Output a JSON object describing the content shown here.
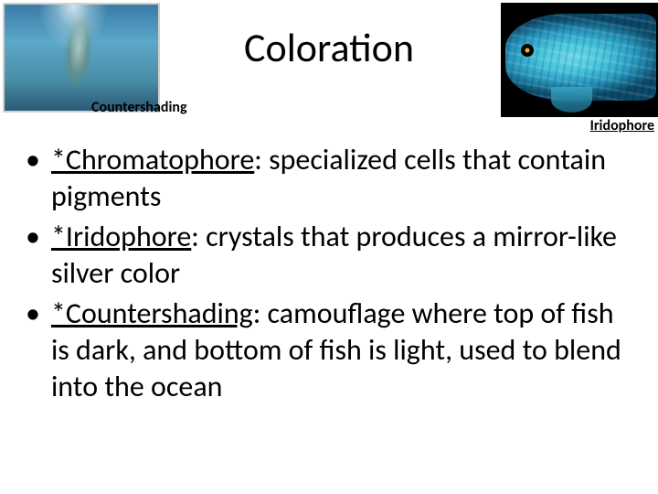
{
  "title": "Coloration",
  "left_image": {
    "label": "Countershading",
    "bg_gradient": "linear-gradient(180deg, #3a7ba8 0%, #5ba8c8 35%, #4a8fa8 70%, #2a5a78 100%)"
  },
  "right_image": {
    "label": "Iridophore",
    "fish_gradient": "radial-gradient(ellipse 70% 50% at 45% 50%, #6ed8e8 0%, #48c8e0 30%, #2898c0 60%, #0a4868 90%)"
  },
  "bullets": [
    {
      "term": "*Chromatophore",
      "rest": ": specialized cells that contain pigments"
    },
    {
      "term": "*Iridophore",
      "rest": ": crystals that produces a mirror-like silver color"
    },
    {
      "term": "*Countershading",
      "rest": ": camouflage where top of fish is dark, and bottom of fish is light, used to blend into the ocean"
    }
  ],
  "colors": {
    "text": "#000000",
    "background": "#ffffff"
  },
  "typography": {
    "title_fontsize": 44,
    "body_fontsize": 32,
    "label_fontsize": 16,
    "font_family": "Calibri"
  }
}
